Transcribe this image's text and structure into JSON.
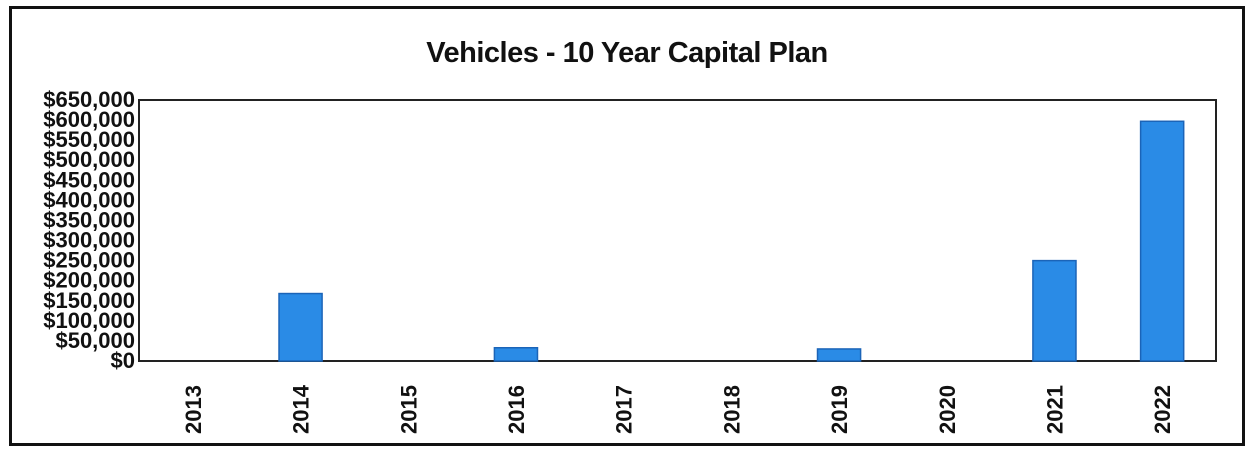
{
  "chart_data": {
    "type": "bar",
    "title": "Vehicles - 10 Year Capital Plan",
    "xlabel": "",
    "ylabel": "",
    "categories": [
      "2013",
      "2014",
      "2015",
      "2016",
      "2017",
      "2018",
      "2019",
      "2020",
      "2021",
      "2022"
    ],
    "values": [
      0,
      168000,
      0,
      33000,
      0,
      0,
      30000,
      0,
      250000,
      597000
    ],
    "ylim": [
      0,
      650000
    ],
    "yticks": [
      "$0",
      "$50,000",
      "$100,000",
      "$150,000",
      "$200,000",
      "$250,000",
      "$300,000",
      "$350,000",
      "$400,000",
      "$450,000",
      "$500,000",
      "$550,000",
      "$600,000",
      "$650,000"
    ],
    "ytick_values": [
      0,
      50000,
      100000,
      150000,
      200000,
      250000,
      300000,
      350000,
      400000,
      450000,
      500000,
      550000,
      600000,
      650000
    ],
    "grid": false,
    "legend": "none",
    "bar_color": "#2a8be6",
    "bar_edge_color": "#1b64b8"
  }
}
